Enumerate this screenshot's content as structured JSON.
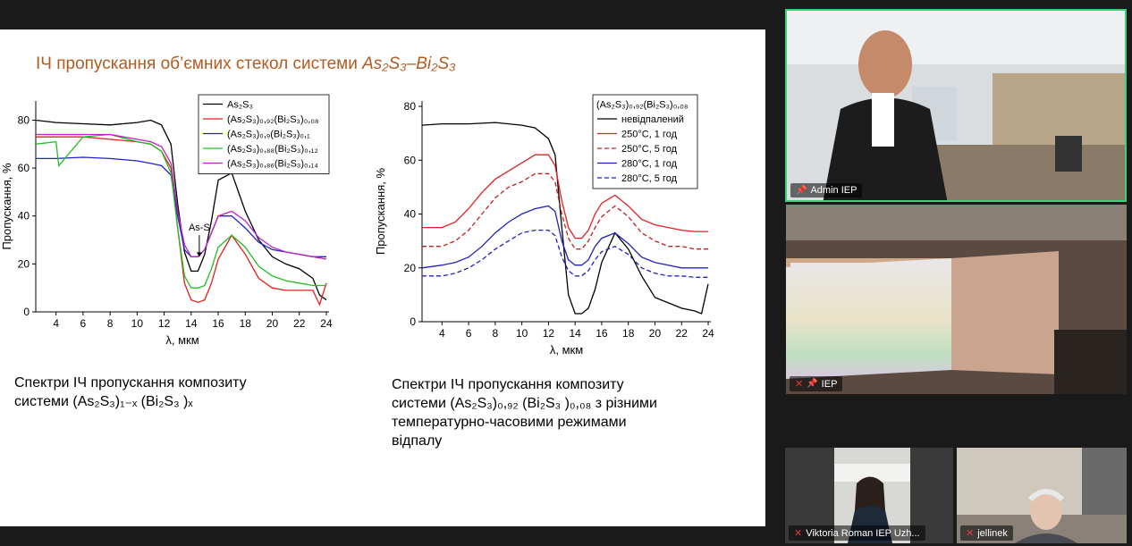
{
  "slide": {
    "title_prefix": "ІЧ пропускання об’ємних стекол системи ",
    "title_formula": "As₂S₃–Bi₂S₃",
    "caption_left_l1": "Спектри ІЧ пропускання композиту",
    "caption_left_l2": "системи  (As₂S₃)₁₋ₓ (Bi₂S₃ )ₓ",
    "caption_right_l1": "Спектри ІЧ пропускання композиту",
    "caption_right_l2": "системи  (As₂S₃)₀,₉₂ (Bi₂S₃ )₀,₀₈  з різними",
    "caption_right_l3": "температурно-часовими режимами",
    "caption_right_l4": "відпалу"
  },
  "chart_data": [
    {
      "type": "line",
      "xlabel": "λ, мкм",
      "ylabel": "Пропускання, %",
      "xlim": [
        2.5,
        24.2
      ],
      "ylim": [
        0,
        88
      ],
      "xticks": [
        "4",
        "6",
        "8",
        "10",
        "12",
        "14",
        "16",
        "18",
        "20",
        "22",
        "24"
      ],
      "yticks": [
        "0",
        "20",
        "40",
        "60",
        "80"
      ],
      "annotation": "As-S",
      "legend_position": "top-right",
      "series": [
        {
          "name": "As₂S₃",
          "color": "#000000",
          "x": [
            2.5,
            4,
            6,
            8,
            10,
            11,
            11.8,
            12.5,
            13,
            13.5,
            14,
            14.5,
            15,
            15.5,
            16,
            17,
            18,
            19,
            20,
            21,
            22,
            23,
            23.5,
            24
          ],
          "y": [
            80,
            79,
            78.5,
            78,
            79,
            80,
            78,
            70,
            45,
            25,
            17,
            17,
            24,
            38,
            55,
            58,
            42,
            30,
            23,
            20,
            18,
            14,
            7,
            5
          ]
        },
        {
          "name": "(As₂S₃)₀,₉₂(Bi₂S₃)₀,₀₈",
          "color": "#e02020",
          "x": [
            2.5,
            4,
            6,
            8,
            10,
            11,
            11.8,
            12.5,
            13,
            13.5,
            14,
            14.5,
            15,
            15.5,
            16,
            17,
            18,
            19,
            20,
            21,
            22,
            23,
            23.5,
            24
          ],
          "y": [
            73,
            73,
            73,
            72,
            71,
            70,
            67,
            60,
            35,
            12,
            5,
            4,
            5,
            12,
            22,
            32,
            24,
            14,
            10,
            9,
            9,
            9,
            3,
            12
          ]
        },
        {
          "name": "(As₂S₃)₀,₉(Bi₂S₃)₀,₁",
          "color": "#2020d0",
          "x": [
            2.5,
            4,
            6,
            8,
            10,
            11,
            11.8,
            12.5,
            13,
            13.5,
            14,
            14.5,
            15,
            15.5,
            16,
            17,
            18,
            19,
            20,
            21,
            22,
            23,
            24
          ],
          "y": [
            64,
            64,
            64.5,
            64,
            63,
            62,
            61,
            57,
            40,
            26,
            23,
            23,
            26,
            33,
            40,
            40,
            35,
            29,
            26,
            25,
            24,
            23,
            23
          ]
        },
        {
          "name": "(As₂S₃)₀,₈₈(Bi₂S₃)₀,₁₂",
          "color": "#20c020",
          "x": [
            2.5,
            4,
            4.2,
            6,
            8,
            10,
            11,
            11.8,
            12.5,
            13,
            13.5,
            14,
            14.5,
            15,
            15.5,
            16,
            17,
            18,
            19,
            20,
            21,
            22,
            23,
            24
          ],
          "y": [
            70,
            71,
            61,
            73,
            74,
            71,
            70,
            67,
            58,
            35,
            15,
            10,
            10,
            11,
            18,
            27,
            32,
            27,
            19,
            15,
            13,
            12,
            11,
            11
          ]
        },
        {
          "name": "(As₂S₃)₀,₈₆(Bi₂S₃)₀,₁₄",
          "color": "#c020c0",
          "x": [
            2.5,
            4,
            6,
            8,
            10,
            11,
            11.8,
            12.5,
            13,
            13.5,
            14,
            14.5,
            15,
            15.5,
            16,
            17,
            18,
            19,
            20,
            21,
            22,
            23,
            24
          ],
          "y": [
            74,
            74,
            74,
            74,
            72,
            71,
            69,
            62,
            42,
            28,
            23,
            23,
            26,
            33,
            40,
            42,
            38,
            31,
            27,
            25,
            24,
            23,
            22
          ]
        }
      ]
    },
    {
      "type": "line",
      "xlabel": "λ, мкм",
      "ylabel": "Пропускання, %",
      "xlim": [
        2.5,
        24.2
      ],
      "ylim": [
        0,
        82
      ],
      "xticks": [
        "4",
        "6",
        "8",
        "10",
        "12",
        "14",
        "16",
        "18",
        "20",
        "22",
        "24"
      ],
      "yticks": [
        "0",
        "20",
        "40",
        "60",
        "80"
      ],
      "legend_title": "(As₂S₃)₀,₉₂(Bi₂S₃)₀,₀₈",
      "legend_position": "top-right",
      "series": [
        {
          "name": "невідпалений",
          "color": "#000000",
          "dash": false,
          "x": [
            2.5,
            4,
            6,
            8,
            10,
            11,
            12,
            12.5,
            13,
            13.5,
            14,
            14.5,
            15,
            15.5,
            16,
            17,
            18,
            19,
            20,
            21,
            22,
            23,
            23.5,
            24
          ],
          "y": [
            73,
            73.5,
            73.5,
            74,
            73,
            72,
            68,
            62,
            35,
            10,
            3,
            3,
            5,
            12,
            22,
            33,
            27,
            17,
            9,
            7,
            5,
            4,
            3,
            14
          ]
        },
        {
          "name": "250°C, 1 год",
          "color": "#e02020",
          "dash": false,
          "x": [
            2.5,
            4,
            5,
            6,
            7,
            8,
            9,
            10,
            11,
            12,
            12.5,
            13,
            13.5,
            14,
            14.5,
            15,
            15.5,
            16,
            17,
            18,
            19,
            20,
            21,
            22,
            23,
            24
          ],
          "y": [
            35,
            35,
            37,
            42,
            48,
            53,
            56,
            59,
            62,
            62,
            58,
            45,
            35,
            31,
            31,
            34,
            40,
            44,
            47,
            43,
            38,
            36,
            35,
            34,
            33.5,
            33.5
          ]
        },
        {
          "name": "250°C, 5 год",
          "color": "#c02020",
          "dash": true,
          "x": [
            2.5,
            4,
            5,
            6,
            7,
            8,
            9,
            10,
            11,
            12,
            12.5,
            13,
            13.5,
            14,
            14.5,
            15,
            15.5,
            16,
            17,
            18,
            19,
            20,
            21,
            22,
            23,
            24
          ],
          "y": [
            28,
            28,
            30,
            34,
            40,
            46,
            50,
            52,
            55,
            55,
            52,
            40,
            31,
            27,
            27,
            30,
            35,
            39,
            43,
            39,
            33,
            30,
            28,
            28,
            27,
            27
          ]
        },
        {
          "name": "280°C, 1 год",
          "color": "#2020c0",
          "dash": false,
          "x": [
            2.5,
            4,
            5,
            6,
            7,
            8,
            9,
            10,
            11,
            12,
            12.5,
            13,
            13.5,
            14,
            14.5,
            15,
            15.5,
            16,
            17,
            18,
            19,
            20,
            21,
            22,
            23,
            24
          ],
          "y": [
            20,
            21,
            22,
            24,
            28,
            33,
            37,
            40,
            42,
            43,
            41,
            30,
            23,
            21,
            21,
            23,
            28,
            31,
            33,
            29,
            24,
            22,
            21,
            20,
            20,
            20
          ]
        },
        {
          "name": "280°C, 5 год",
          "color": "#2020c0",
          "dash": true,
          "x": [
            2.5,
            4,
            5,
            6,
            7,
            8,
            9,
            10,
            11,
            12,
            12.5,
            13,
            13.5,
            14,
            14.5,
            15,
            15.5,
            16,
            17,
            18,
            19,
            20,
            21,
            22,
            23,
            24
          ],
          "y": [
            17,
            17,
            18,
            20,
            23,
            27,
            30,
            33,
            34,
            34,
            32,
            24,
            19,
            17,
            17,
            19,
            23,
            26,
            28,
            25,
            20,
            18,
            17,
            17,
            16.5,
            16.5
          ]
        }
      ]
    }
  ],
  "participants": [
    {
      "name": "Admin IEP",
      "muted": false,
      "pinned": true,
      "active": true
    },
    {
      "name": "IEP",
      "muted": true,
      "pinned": true,
      "active": false
    },
    {
      "name": "Viktoria Roman IEP Uzh...",
      "muted": true,
      "pinned": false,
      "active": false
    },
    {
      "name": "jellinek",
      "muted": true,
      "pinned": false,
      "active": false
    }
  ],
  "colors": {
    "title": "#b35a1f",
    "active_border": "#39d17a",
    "meeting_bg": "#1a1a1a"
  }
}
